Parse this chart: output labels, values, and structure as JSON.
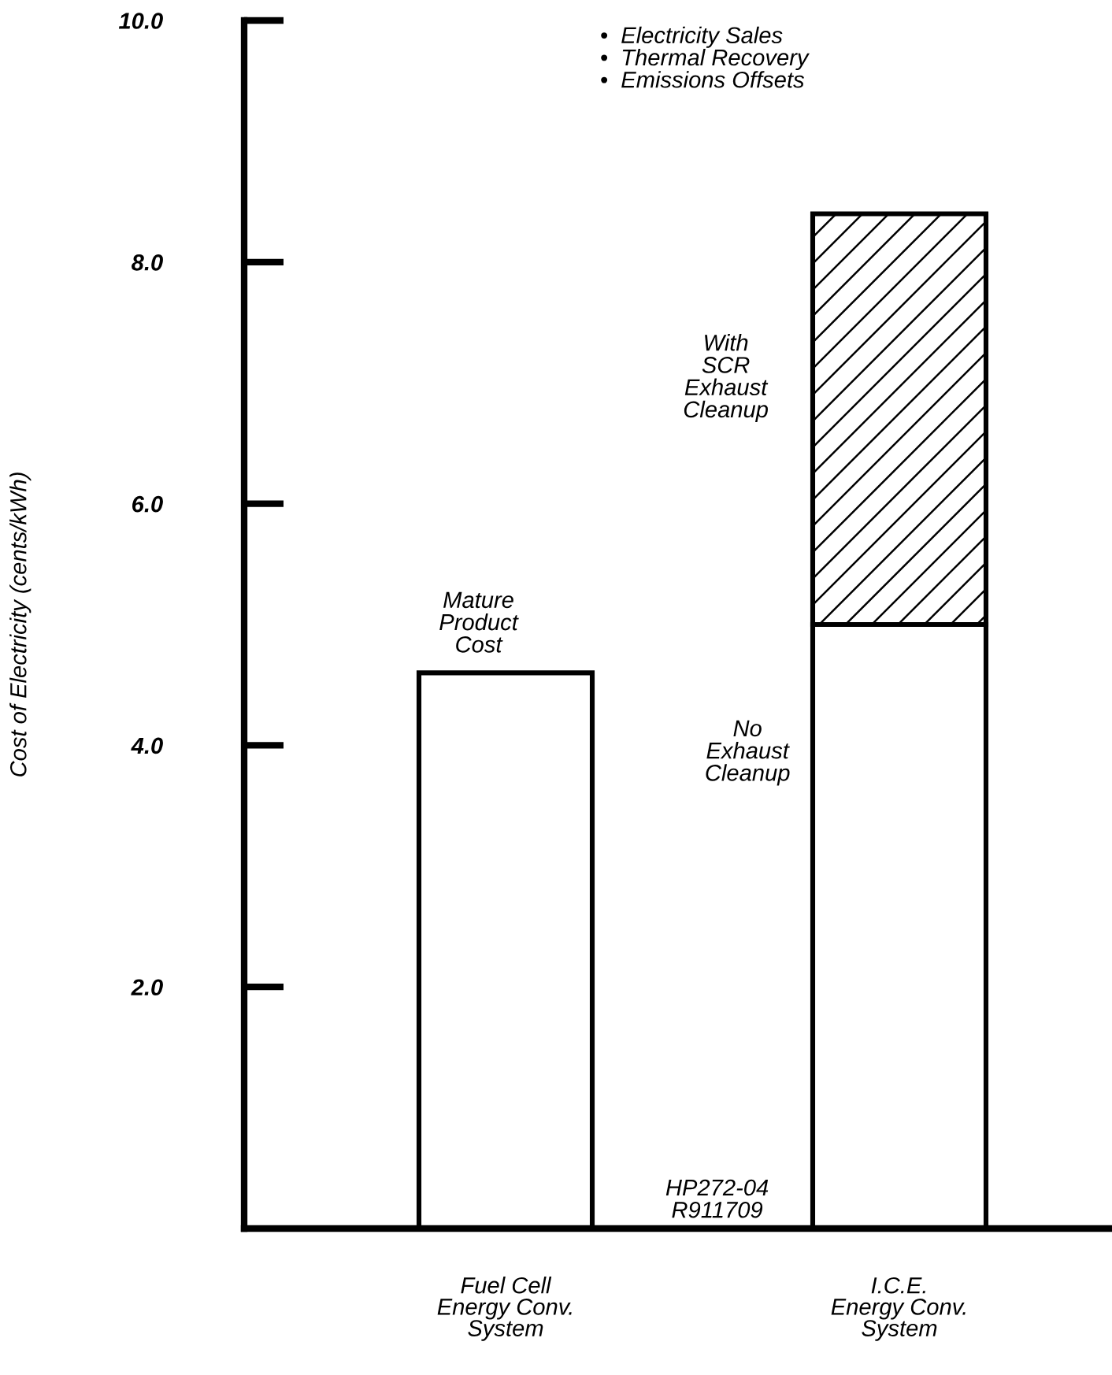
{
  "chart_data": {
    "type": "bar",
    "ylabel": "Cost of Electricity (cents/kWh)",
    "categories": [
      "Fuel Cell\nEnergy Conv.\nSystem",
      "I.C.E.\nEnergy Conv.\nSystem"
    ],
    "stacked": true,
    "series": [
      {
        "color": "#ffffff",
        "values": [
          4.6,
          5.0
        ]
      },
      {
        "color": "#000000",
        "values": [
          null,
          3.4
        ]
      }
    ],
    "ylim": [
      0,
      10
    ],
    "yticks": [
      {
        "value": 2,
        "label": "2.0"
      },
      {
        "value": 4,
        "label": "4.0"
      },
      {
        "value": 6,
        "label": "6.0"
      },
      {
        "value": 8,
        "label": "8.0"
      },
      {
        "value": 10,
        "label": "10.0"
      }
    ],
    "grid": false,
    "annotations": [
      "•  Electricity Sales\n•  Thermal Recovery\n•  Emissions Offsets",
      "Mature\nProduct\nCost",
      "With\nSCR\nExhaust\nCleanup",
      "No\nExhaust\nCleanup",
      "HP272-04\nR911709"
    ]
  }
}
